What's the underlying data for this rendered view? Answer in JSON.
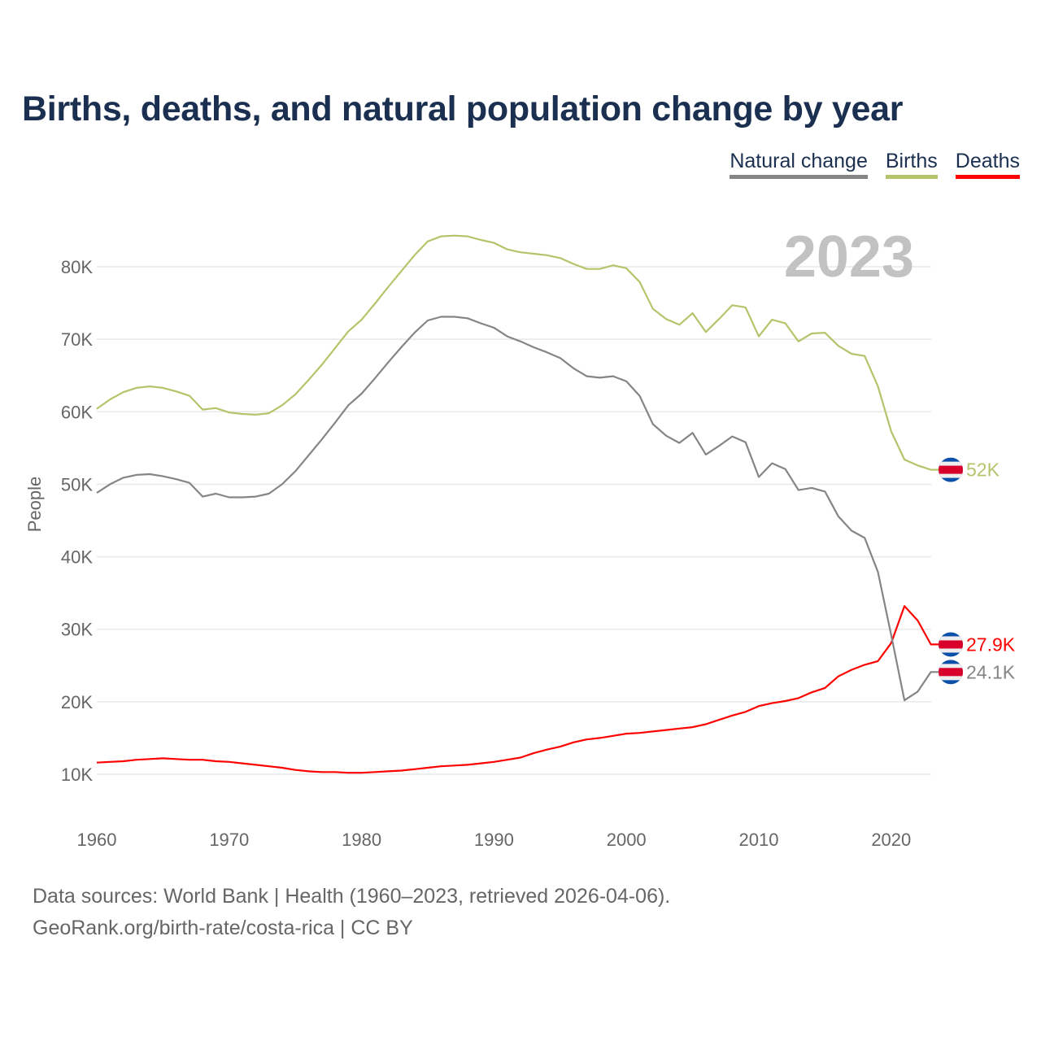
{
  "title": "Births, deaths, and natural population change by year",
  "legend": [
    {
      "label": "Natural change",
      "color": "#858585"
    },
    {
      "label": "Births",
      "color": "#b5c46a"
    },
    {
      "label": "Deaths",
      "color": "#ff0000"
    }
  ],
  "footer": {
    "line1": "Data sources: World Bank | Health (1960–2023, retrieved 2026-04-06).",
    "line2": "GeoRank.org/birth-rate/costa-rica | CC BY"
  },
  "chart_data": {
    "type": "line",
    "title": "Births, deaths, and natural population change by year",
    "xlabel": "",
    "ylabel": "People",
    "year_watermark": "2023",
    "xlim": [
      1960,
      2023
    ],
    "ylim": [
      5000,
      90000
    ],
    "x_ticks": [
      1960,
      1970,
      1980,
      1990,
      2000,
      2010,
      2020
    ],
    "x_tick_labels": [
      "1960",
      "1970",
      "1980",
      "1990",
      "2000",
      "2010",
      "2020"
    ],
    "y_ticks": [
      10000,
      20000,
      30000,
      40000,
      50000,
      60000,
      70000,
      80000
    ],
    "y_tick_labels": [
      "10K",
      "20K",
      "30K",
      "40K",
      "50K",
      "60K",
      "70K",
      "80K"
    ],
    "grid": true,
    "legend_position": "top-right",
    "x_start": 1960,
    "series": [
      {
        "name": "Births",
        "color": "#b5c46a",
        "end_label": "52K",
        "values_k": [
          60.4,
          61.7,
          62.7,
          63.3,
          63.5,
          63.3,
          62.8,
          62.2,
          60.3,
          60.5,
          59.9,
          59.7,
          59.6,
          59.8,
          60.9,
          62.4,
          64.4,
          66.5,
          68.8,
          71.1,
          72.7,
          74.9,
          77.2,
          79.4,
          81.6,
          83.5,
          84.2,
          84.3,
          84.2,
          83.7,
          83.3,
          82.4,
          82.0,
          81.8,
          81.6,
          81.2,
          80.4,
          79.7,
          79.7,
          80.2,
          79.8,
          77.9,
          74.2,
          72.8,
          72.0,
          73.6,
          71.0,
          72.8,
          74.7,
          74.4,
          70.4,
          72.7,
          72.2,
          69.7,
          70.8,
          70.9,
          69.1,
          68.0,
          67.7,
          63.5,
          57.3,
          53.4,
          52.6,
          52.0
        ]
      },
      {
        "name": "Deaths",
        "color": "#ff0000",
        "end_label": "27.9K",
        "values_k": [
          11.6,
          11.7,
          11.8,
          12.0,
          12.1,
          12.2,
          12.1,
          12.0,
          12.0,
          11.8,
          11.7,
          11.5,
          11.3,
          11.1,
          10.9,
          10.6,
          10.4,
          10.3,
          10.3,
          10.2,
          10.2,
          10.3,
          10.4,
          10.5,
          10.7,
          10.9,
          11.1,
          11.2,
          11.3,
          11.5,
          11.7,
          12.0,
          12.3,
          12.9,
          13.4,
          13.8,
          14.4,
          14.8,
          15.0,
          15.3,
          15.6,
          15.7,
          15.9,
          16.1,
          16.3,
          16.5,
          16.9,
          17.5,
          18.1,
          18.6,
          19.4,
          19.8,
          20.1,
          20.5,
          21.3,
          21.9,
          23.5,
          24.4,
          25.1,
          25.6,
          28.1,
          33.2,
          31.2,
          27.9
        ]
      },
      {
        "name": "Natural change",
        "color": "#858585",
        "end_label": "24.1K",
        "values_k": [
          48.8,
          50.0,
          50.9,
          51.3,
          51.4,
          51.1,
          50.7,
          50.2,
          48.3,
          48.7,
          48.2,
          48.2,
          48.3,
          48.7,
          50.0,
          51.8,
          54.0,
          56.2,
          58.5,
          60.9,
          62.5,
          64.6,
          66.8,
          68.9,
          70.9,
          72.6,
          73.1,
          73.1,
          72.9,
          72.2,
          71.6,
          70.4,
          69.7,
          68.9,
          68.2,
          67.4,
          66.0,
          64.9,
          64.7,
          64.9,
          64.2,
          62.2,
          58.3,
          56.7,
          55.7,
          57.1,
          54.1,
          55.3,
          56.6,
          55.8,
          51.0,
          52.9,
          52.1,
          49.2,
          49.5,
          49.0,
          45.6,
          43.6,
          42.6,
          37.9,
          29.2,
          20.2,
          21.4,
          24.1
        ]
      }
    ]
  }
}
